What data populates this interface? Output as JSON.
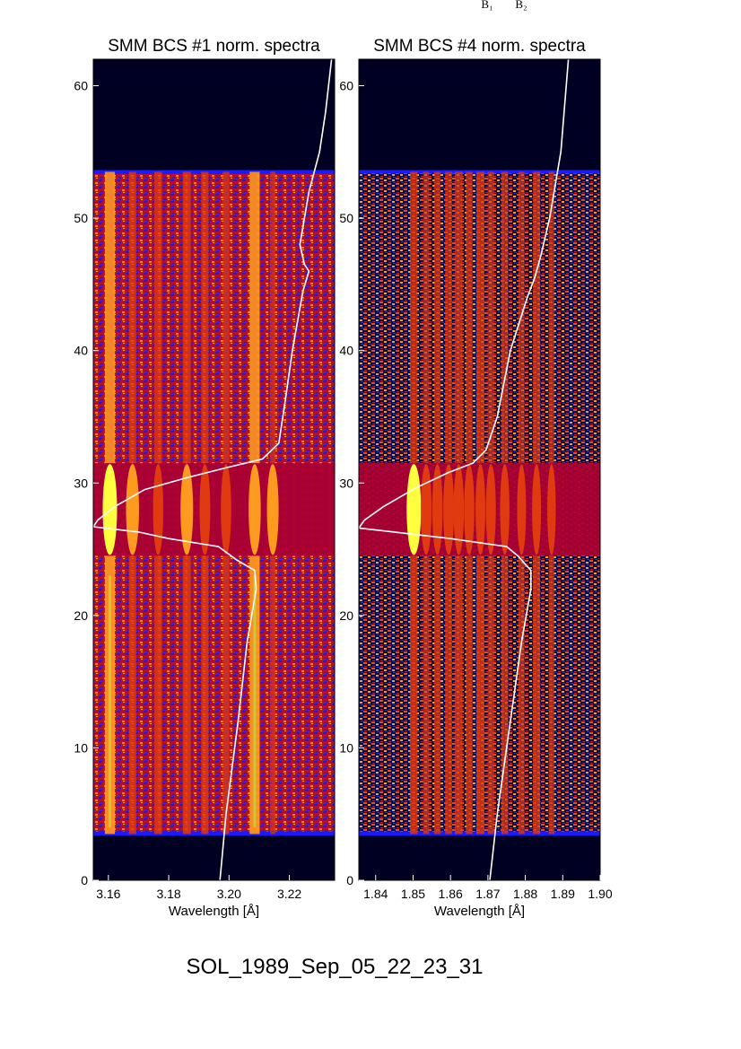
{
  "page_labels": {
    "top_label_1": "B₁",
    "top_label_2": "B₂"
  },
  "footer": {
    "event_id": "SOL_1989_Sep_05_22_23_31"
  },
  "chart_data": [
    {
      "type": "heatmap",
      "title": "SMM BCS #1 norm. spectra",
      "xlabel": "Wavelength [Å]",
      "ylabel": "",
      "xlim": [
        3.155,
        3.235
      ],
      "ylim": [
        0,
        62
      ],
      "xticks": [
        "3.16",
        "3.18",
        "3.20",
        "3.22"
      ],
      "xtick_values": [
        3.16,
        3.18,
        3.2,
        3.22
      ],
      "yticks": [
        "0",
        "10",
        "20",
        "30",
        "40",
        "50",
        "60"
      ],
      "ytick_values": [
        0,
        10,
        20,
        30,
        40,
        50,
        60
      ],
      "data_band_y": [
        3.5,
        53.5
      ],
      "flare_band_y": [
        24.5,
        31.5
      ],
      "spectral_lines_x": [
        3.1605,
        3.168,
        3.1765,
        3.186,
        3.192,
        3.199,
        3.2085,
        3.2145
      ],
      "flare_intensity": [
        1.0,
        0.85,
        0.55,
        0.8,
        0.6,
        0.55,
        0.75,
        0.7
      ],
      "quiet_intensity": [
        0.8,
        0.45,
        0.5,
        0.55,
        0.45,
        0.35,
        0.8,
        0.2
      ],
      "colors": [
        "#000022",
        "#1a1aff",
        "#aa0033",
        "#e03a10",
        "#ff9a20",
        "#ffff40"
      ],
      "overlay_curve": {
        "color": "#ffffff",
        "points": [
          [
            3.197,
            0
          ],
          [
            3.199,
            5
          ],
          [
            3.203,
            12
          ],
          [
            3.206,
            18
          ],
          [
            3.209,
            22
          ],
          [
            3.2085,
            23.4
          ],
          [
            3.2025,
            24.2
          ],
          [
            3.1965,
            25.2
          ],
          [
            3.18,
            25.8
          ],
          [
            3.17,
            26.3
          ],
          [
            3.155,
            26.7
          ],
          [
            3.1565,
            27.2
          ],
          [
            3.162,
            28.2
          ],
          [
            3.172,
            29.5
          ],
          [
            3.186,
            30.4
          ],
          [
            3.2,
            31.2
          ],
          [
            3.211,
            31.8
          ],
          [
            3.2165,
            33
          ],
          [
            3.2185,
            36
          ],
          [
            3.221,
            40
          ],
          [
            3.2245,
            44.5
          ],
          [
            3.2265,
            46
          ],
          [
            3.225,
            46.5
          ],
          [
            3.2235,
            48
          ],
          [
            3.2265,
            52
          ],
          [
            3.23,
            55
          ],
          [
            3.232,
            58
          ],
          [
            3.234,
            62
          ]
        ]
      }
    },
    {
      "type": "heatmap",
      "title": "SMM BCS #4 norm. spectra",
      "xlabel": "Wavelength [Å]",
      "ylabel": "",
      "xlim": [
        1.8355,
        1.9
      ],
      "ylim": [
        0,
        62
      ],
      "xticks": [
        "1.84",
        "1.85",
        "1.86",
        "1.87",
        "1.88",
        "1.89",
        "1.90"
      ],
      "xtick_values": [
        1.84,
        1.85,
        1.86,
        1.87,
        1.88,
        1.89,
        1.9
      ],
      "yticks": [
        "0",
        "10",
        "20",
        "30",
        "40",
        "50",
        "60"
      ],
      "ytick_values": [
        0,
        10,
        20,
        30,
        40,
        50,
        60
      ],
      "data_band_y": [
        3.5,
        53.5
      ],
      "flare_band_y": [
        24.5,
        31.5
      ],
      "spectral_lines_x": [
        1.8502,
        1.8535,
        1.8565,
        1.8595,
        1.8622,
        1.865,
        1.868,
        1.8708,
        1.8745,
        1.879,
        1.883,
        1.887
      ],
      "flare_intensity": [
        1.0,
        0.6,
        0.55,
        0.6,
        0.55,
        0.55,
        0.5,
        0.5,
        0.45,
        0.4,
        0.4,
        0.35
      ],
      "quiet_intensity": [
        0.5,
        0.3,
        0.35,
        0.4,
        0.5,
        0.4,
        0.55,
        0.35,
        0.4,
        0.3,
        0.45,
        0.25
      ],
      "colors": [
        "#000022",
        "#1a1aff",
        "#aa0033",
        "#e03a10",
        "#ff9a20",
        "#ffff40"
      ],
      "overlay_curve": {
        "color": "#ffffff",
        "points": [
          [
            1.8705,
            0
          ],
          [
            1.8725,
            5
          ],
          [
            1.876,
            12
          ],
          [
            1.879,
            18
          ],
          [
            1.8815,
            22
          ],
          [
            1.8815,
            23.4
          ],
          [
            1.878,
            24.5
          ],
          [
            1.875,
            25.2
          ],
          [
            1.86,
            25.8
          ],
          [
            1.845,
            26.3
          ],
          [
            1.8355,
            26.6
          ],
          [
            1.837,
            27.2
          ],
          [
            1.842,
            28.2
          ],
          [
            1.8505,
            29.6
          ],
          [
            1.8595,
            30.8
          ],
          [
            1.866,
            31.5
          ],
          [
            1.8695,
            32.5
          ],
          [
            1.8725,
            35
          ],
          [
            1.876,
            40
          ],
          [
            1.8805,
            44
          ],
          [
            1.8825,
            45.5
          ],
          [
            1.884,
            47
          ],
          [
            1.8865,
            50
          ],
          [
            1.8895,
            55
          ],
          [
            1.8905,
            58.5
          ],
          [
            1.8915,
            62
          ]
        ]
      }
    }
  ]
}
